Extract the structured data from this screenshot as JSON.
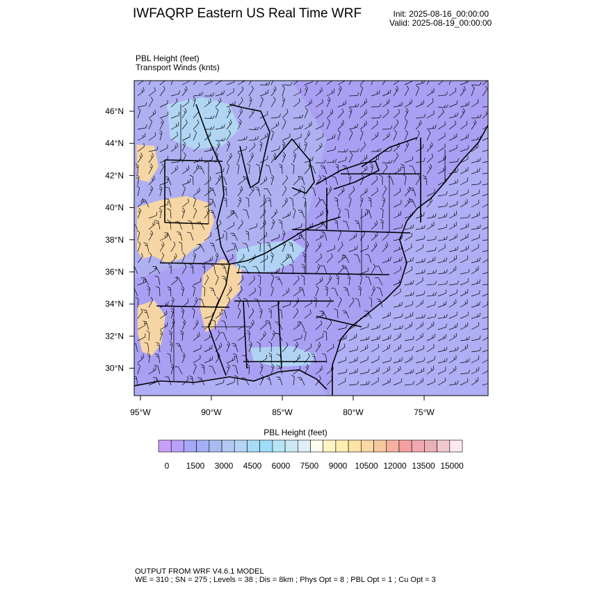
{
  "header": {
    "title": "IWFAQRP Eastern US Real Time WRF",
    "init": "Init: 2025-08-16_00:00:00",
    "valid": "Valid: 2025-08-19_00:00:00"
  },
  "fields": {
    "primary": "PBL Height   (feet)",
    "secondary": "Transport Winds   (knts)"
  },
  "map": {
    "lat_ticks": [
      "46°N",
      "44°N",
      "42°N",
      "40°N",
      "38°N",
      "36°N",
      "34°N",
      "32°N",
      "30°N"
    ],
    "lon_ticks": [
      "95°W",
      "90°W",
      "85°W",
      "80°W",
      "75°W"
    ]
  },
  "colorbar": {
    "title": "PBL Height  (feet)",
    "labels": [
      "0",
      "1500",
      "3000",
      "4500",
      "6000",
      "7500",
      "9000",
      "10500",
      "12000",
      "13500",
      "15000"
    ],
    "colors": [
      "#c8a0f8",
      "#b9a0f8",
      "#a8a8f8",
      "#a2aef6",
      "#a8bcf2",
      "#b2c8f0",
      "#b4d6f6",
      "#a6dcf6",
      "#9edef8",
      "#b6e6f6",
      "#cce8f4",
      "#e0eef6",
      "#fffff0",
      "#fff4c4",
      "#ffeeb0",
      "#fde4a6",
      "#fbd8a4",
      "#f8c8a0",
      "#f6b0a0",
      "#f4a0a0",
      "#f2a8b0",
      "#eab0b8",
      "#f0c8d0",
      "#fce8ee"
    ],
    "map_colors": {
      "land_low": "#a99ff3",
      "land_mid": "#b6c6f2",
      "ocean": "#b0aef4",
      "warm": "#fad8a0",
      "cyan": "#b2e0f4"
    }
  },
  "footer": {
    "line1": "OUTPUT FROM WRF V4.6.1 MODEL",
    "line2": "WE = 310 ; SN = 275 ; Levels = 38 ; Dis = 8km ; Phys Opt = 8 ; PBL Opt = 1 ; Cu Opt = 3"
  }
}
